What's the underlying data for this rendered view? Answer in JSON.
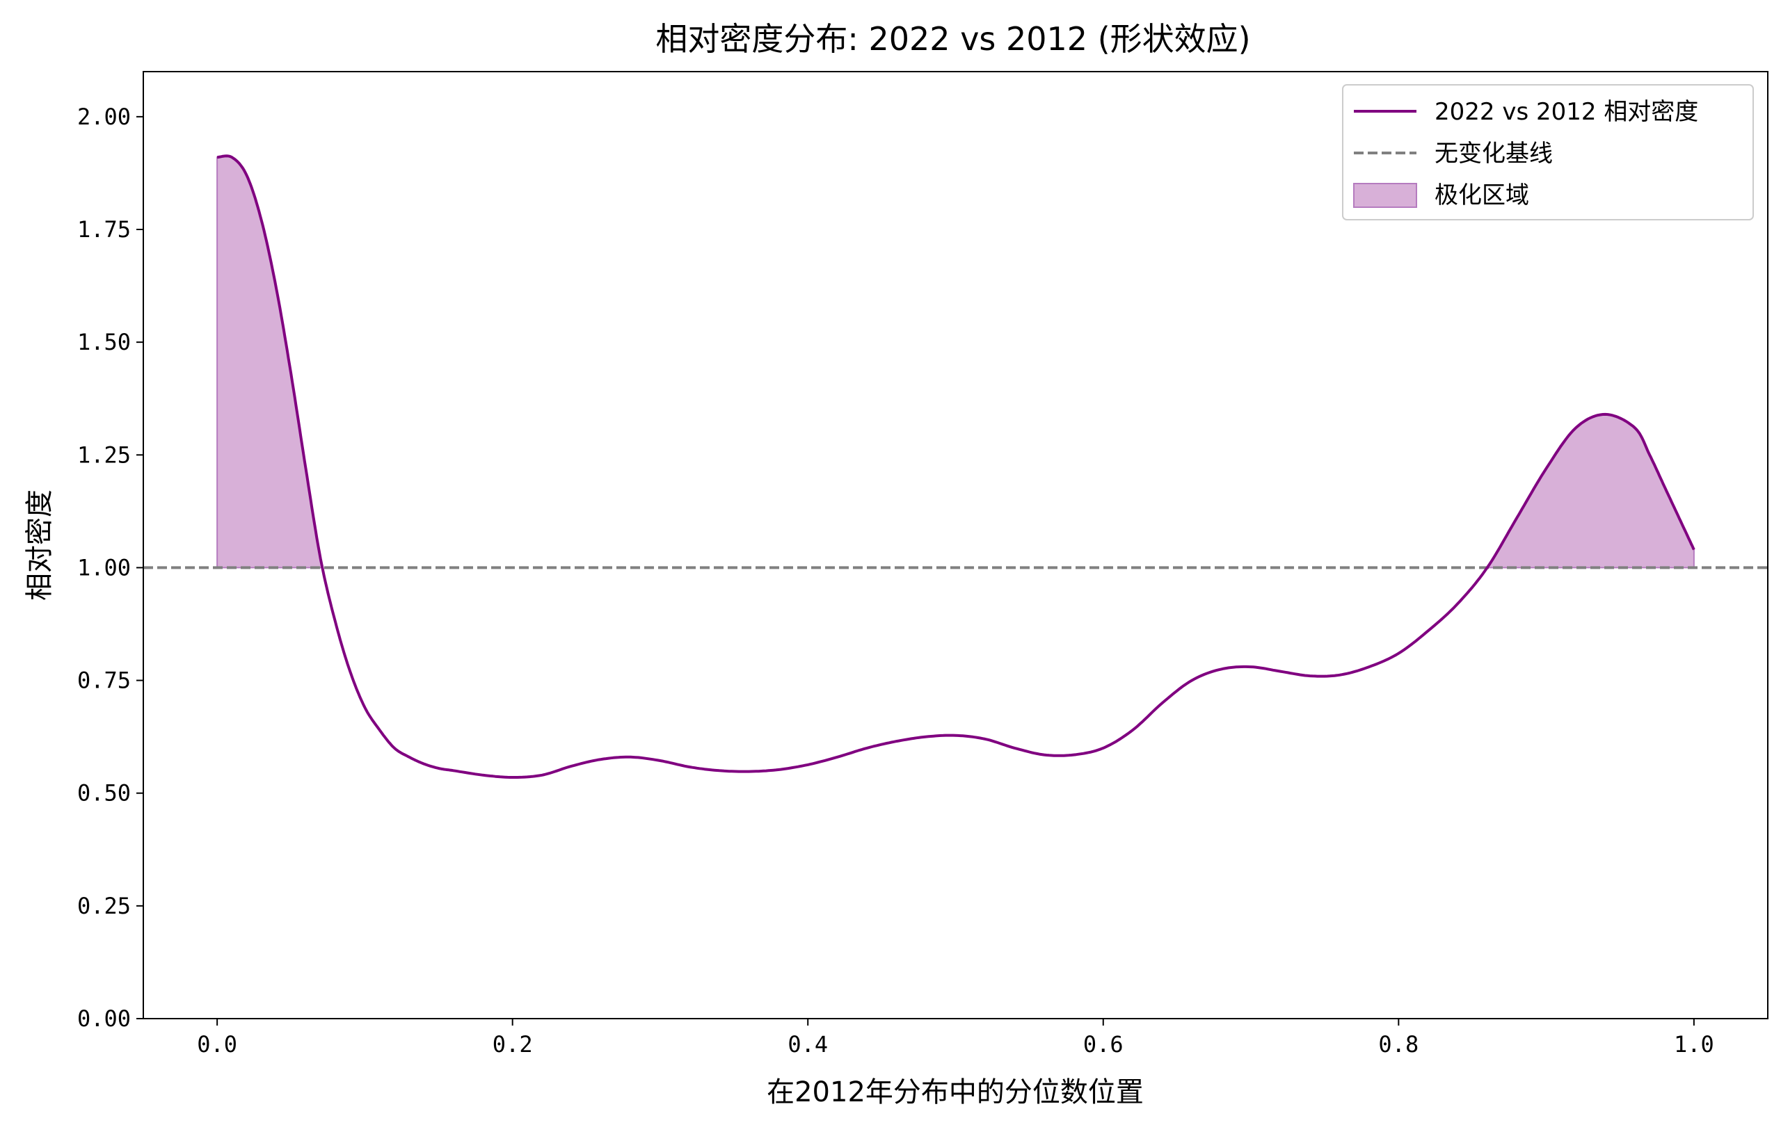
{
  "chart_data": {
    "type": "line",
    "title": "相对密度分布: 2022 vs 2012 (形状效应)",
    "xlabel": "在2012年分布中的分位数位置",
    "ylabel": "相对密度",
    "xlim": [
      -0.05,
      1.05
    ],
    "ylim": [
      0.0,
      2.1
    ],
    "xticks": [
      0.0,
      0.2,
      0.4,
      0.6,
      0.8,
      1.0
    ],
    "xtick_labels": [
      "0.0",
      "0.2",
      "0.4",
      "0.6",
      "0.8",
      "1.0"
    ],
    "yticks": [
      0.0,
      0.25,
      0.5,
      0.75,
      1.0,
      1.25,
      1.5,
      1.75,
      2.0
    ],
    "ytick_labels": [
      "0.00",
      "0.25",
      "0.50",
      "0.75",
      "1.00",
      "1.25",
      "1.50",
      "1.75",
      "2.00"
    ],
    "grid": false,
    "legend_position": "top-right",
    "baseline": {
      "y": 1.0,
      "name": "无变化基线",
      "color": "#808080",
      "style": "dashed"
    },
    "fill": {
      "name": "极化区域",
      "color": "#d8b0d8",
      "edge_color": "#b57bbf",
      "where": "above-baseline"
    },
    "series": [
      {
        "name": "2022 vs 2012 相对密度",
        "color": "#800080",
        "x": [
          0.0,
          0.01,
          0.02,
          0.03,
          0.04,
          0.05,
          0.06,
          0.07,
          0.08,
          0.09,
          0.1,
          0.11,
          0.12,
          0.13,
          0.14,
          0.15,
          0.16,
          0.18,
          0.2,
          0.22,
          0.24,
          0.26,
          0.28,
          0.3,
          0.32,
          0.34,
          0.36,
          0.38,
          0.4,
          0.42,
          0.44,
          0.46,
          0.48,
          0.5,
          0.52,
          0.54,
          0.56,
          0.58,
          0.6,
          0.62,
          0.64,
          0.66,
          0.68,
          0.7,
          0.72,
          0.74,
          0.76,
          0.78,
          0.8,
          0.82,
          0.84,
          0.86,
          0.88,
          0.9,
          0.92,
          0.94,
          0.96,
          0.97,
          0.98,
          0.99,
          1.0
        ],
        "y": [
          1.91,
          1.91,
          1.87,
          1.77,
          1.62,
          1.43,
          1.22,
          1.02,
          0.88,
          0.77,
          0.69,
          0.64,
          0.6,
          0.58,
          0.565,
          0.555,
          0.55,
          0.54,
          0.535,
          0.54,
          0.56,
          0.575,
          0.58,
          0.572,
          0.558,
          0.55,
          0.548,
          0.552,
          0.563,
          0.58,
          0.6,
          0.615,
          0.625,
          0.628,
          0.62,
          0.6,
          0.585,
          0.585,
          0.6,
          0.64,
          0.7,
          0.75,
          0.775,
          0.78,
          0.77,
          0.76,
          0.762,
          0.78,
          0.81,
          0.86,
          0.92,
          1.0,
          1.11,
          1.22,
          1.31,
          1.34,
          1.31,
          1.25,
          1.18,
          1.11,
          1.04
        ]
      }
    ]
  }
}
